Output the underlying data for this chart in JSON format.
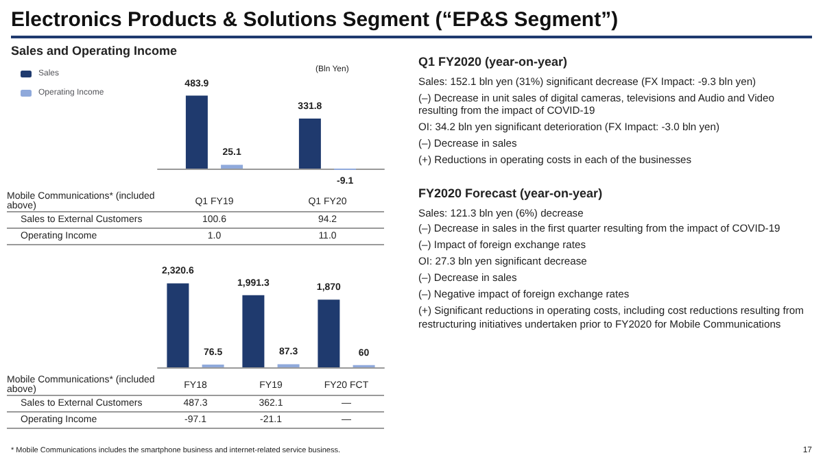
{
  "chart_data": [
    {
      "type": "bar",
      "title": "Electronics Products & Solutions Segment (“EP&S Segment”)",
      "subtitle": "Sales and Operating Income",
      "ylabel": "(Bln Yen)",
      "categories": [
        "Q1 FY19",
        "Q1 FY20"
      ],
      "series": [
        {
          "name": "Sales",
          "color": "#1f3a6e",
          "values": [
            483.9,
            331.8
          ]
        },
        {
          "name": "Operating Income",
          "color": "#8fa9db",
          "values": [
            25.1,
            -9.1
          ]
        }
      ],
      "data_labels": true,
      "legend": "top left",
      "annotations": [
        "Mobile Communications* (included above)",
        "Sales to External Customers",
        "100.6",
        "94.2",
        "Operating Income",
        "1.0",
        "11.0"
      ]
    },
    {
      "type": "bar",
      "categories": [
        "FY18",
        "FY19",
        "FY20 FCT"
      ],
      "series": [
        {
          "color": "#1f3a6e",
          "values": [
            2320.6,
            1991.3,
            1870
          ],
          "value_labels": [
            "2,320.6",
            "1,991.3",
            "1,870"
          ]
        },
        {
          "color": "#8fa9db",
          "values": [
            76.5,
            87.3,
            60
          ],
          "value_labels": [
            "76.5",
            "87.3",
            "60"
          ]
        }
      ],
      "annotations": [
        "Mobile Communications* (included above)",
        "Sales to External Customers",
        "487.3",
        "362.1",
        "—",
        "Operating Income",
        "-97.1",
        "-21.1",
        "—",
        "* Mobile Communications includes the smartphone business and internet-related service business."
      ]
    },
    {
      "type": "other",
      "title": "Q1 FY2020 (year-on-year)",
      "annotations": [
        "Sales: 152.1 bln yen (31%) significant decrease (FX Impact: -9.3 bln yen)",
        "(–) Decrease in unit sales of digital cameras, televisions and Audio and Video resulting from the impact of COVID-19",
        "OI: 34.2 bln yen significant deterioration (FX Impact: -3.0 bln yen)",
        "(–) Decrease in sales",
        "(+) Reductions in operating costs in each of the businesses",
        "FY2020 Forecast (year-on-year)",
        "Sales: 121.3 bln yen (6%) decrease",
        "(–) Decrease in sales in the first quarter resulting from the impact of COVID-19",
        "(–) Impact of foreign exchange rates",
        "OI: 27.3 bln yen significant decrease",
        "(–) Decrease in sales",
        "(–) Negative impact of foreign exchange rates",
        "(+) Significant reductions in operating costs, including cost reductions resulting from restructuring initiatives undertaken prior to FY2020 for Mobile Communications",
        "17"
      ]
    }
  ]
}
